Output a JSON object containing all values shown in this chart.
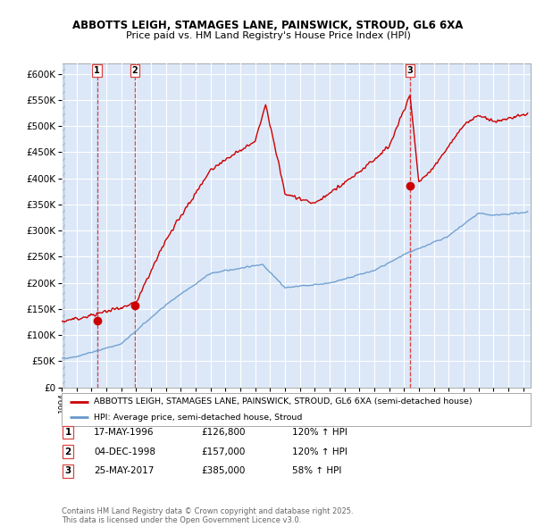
{
  "title": "ABBOTTS LEIGH, STAMAGES LANE, PAINSWICK, STROUD, GL6 6XA",
  "subtitle": "Price paid vs. HM Land Registry's House Price Index (HPI)",
  "ylim": [
    0,
    620000
  ],
  "yticks": [
    0,
    50000,
    100000,
    150000,
    200000,
    250000,
    300000,
    350000,
    400000,
    450000,
    500000,
    550000,
    600000
  ],
  "xlim_start": 1994.0,
  "xlim_end": 2025.5,
  "background_color": "#ffffff",
  "plot_bg_color": "#dce8f8",
  "grid_color": "#ffffff",
  "sale_dates": [
    1996.38,
    1998.92,
    2017.4
  ],
  "sale_prices": [
    126800,
    157000,
    385000
  ],
  "sale_labels": [
    "1",
    "2",
    "3"
  ],
  "legend_label_red": "ABBOTTS LEIGH, STAMAGES LANE, PAINSWICK, STROUD, GL6 6XA (semi-detached house)",
  "legend_label_blue": "HPI: Average price, semi-detached house, Stroud",
  "table_data": [
    [
      "1",
      "17-MAY-1996",
      "£126,800",
      "120% ↑ HPI"
    ],
    [
      "2",
      "04-DEC-1998",
      "£157,000",
      "120% ↑ HPI"
    ],
    [
      "3",
      "25-MAY-2017",
      "£385,000",
      "58% ↑ HPI"
    ]
  ],
  "footer": "Contains HM Land Registry data © Crown copyright and database right 2025.\nThis data is licensed under the Open Government Licence v3.0.",
  "red_color": "#cc0000",
  "blue_color": "#6699cc",
  "dashed_color": "#dd4444"
}
